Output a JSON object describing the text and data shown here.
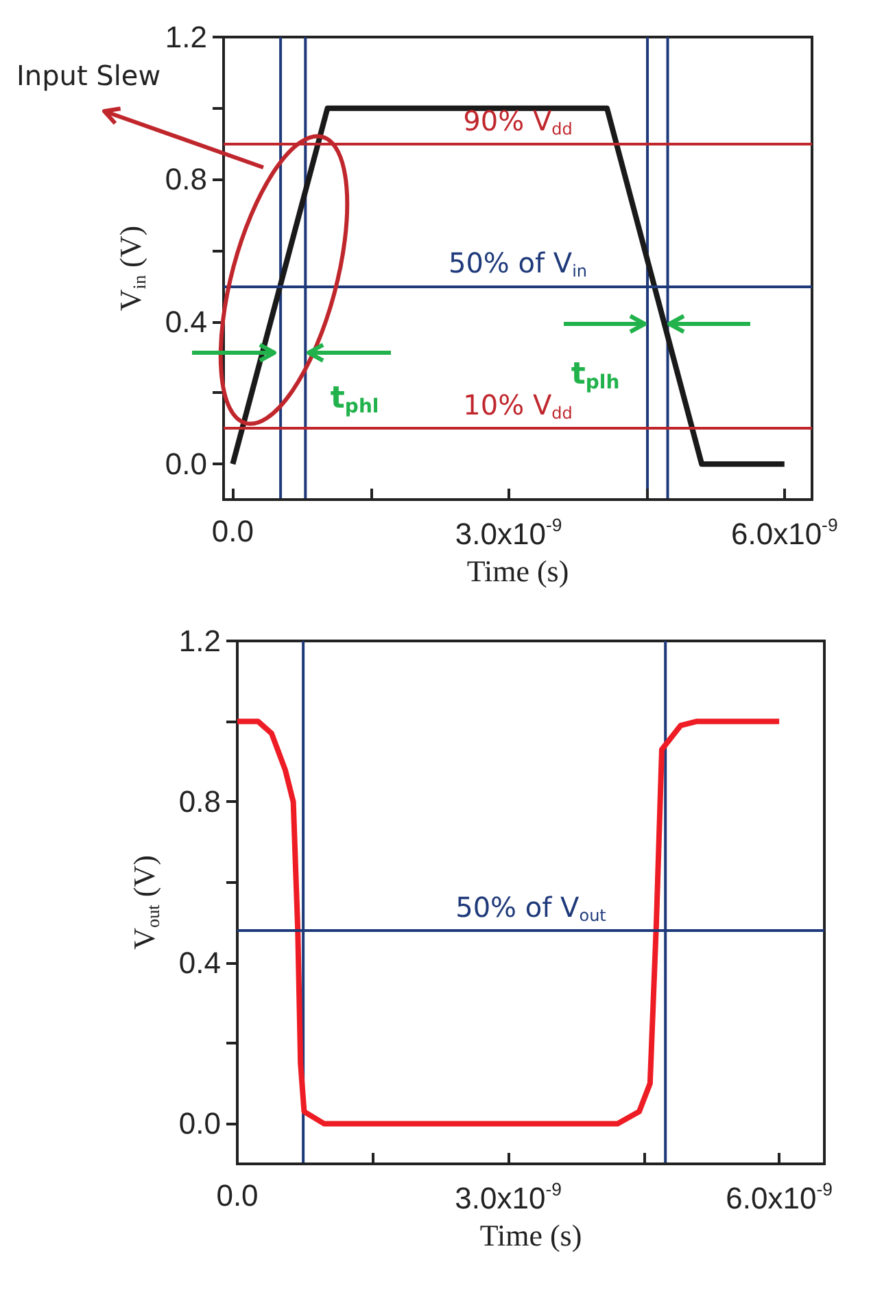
{
  "chart_data": [
    {
      "type": "line",
      "xlabel": "Time (s)",
      "ylabel": "V$_{in}$ (V)",
      "xlim": [
        -1e-10,
        6.3e-09
      ],
      "ylim": [
        -0.1,
        1.2
      ],
      "xticks": [
        {
          "value": 0,
          "label": "0.0"
        },
        {
          "value": 1.5e-09,
          "label": null
        },
        {
          "value": 3e-09,
          "label": "3.0x10$^{-9}$"
        },
        {
          "value": 4.5e-09,
          "label": null
        },
        {
          "value": 6e-09,
          "label": "6.0x10$^{-9}$"
        }
      ],
      "yticks": [
        {
          "value": 0,
          "label": "0.0"
        },
        {
          "value": 0.2,
          "label": null
        },
        {
          "value": 0.4,
          "label": "0.4"
        },
        {
          "value": 0.6,
          "label": null
        },
        {
          "value": 0.8,
          "label": "0.8"
        },
        {
          "value": 1.0,
          "label": null
        },
        {
          "value": 1.2,
          "label": "1.2"
        }
      ],
      "series": [
        {
          "color": "#1a1a1a",
          "x": [
            0,
            1.03e-09,
            4.07e-09,
            5.1e-09,
            6e-09
          ],
          "values": [
            0,
            1.0,
            1.0,
            0,
            0
          ]
        }
      ],
      "ref_lines": [
        {
          "axis": "y",
          "value": 0.9,
          "label": "90% V$_{dd}$",
          "color": "#c0272d"
        },
        {
          "axis": "y",
          "value": 0.1,
          "label": "10% V$_{dd}$",
          "color": "#c0272d"
        },
        {
          "axis": "y",
          "value": 0.5,
          "label": "50% of V$_{in}$",
          "color": "#1f3a7a"
        },
        {
          "axis": "x",
          "value": 5.2e-10,
          "color": "#1f3a7a"
        },
        {
          "axis": "x",
          "value": 7.9e-10,
          "color": "#1f3a7a"
        },
        {
          "axis": "x",
          "value": 4.51e-09,
          "color": "#1f3a7a"
        },
        {
          "axis": "x",
          "value": 4.73e-09,
          "color": "#1f3a7a"
        }
      ],
      "annotations": [
        "Input Slew",
        {
          "text": "t$_{phl}$",
          "x": 5.2e-10,
          "y": 0.31
        },
        {
          "text": "t$_{plh}$",
          "x": 4.51e-09,
          "y": 0.39
        }
      ]
    },
    {
      "type": "line",
      "xlabel": "Time (s)",
      "ylabel": "V$_{out}$ (V)",
      "xlim": [
        0,
        6.5e-09
      ],
      "ylim": [
        -0.1,
        1.2
      ],
      "xticks": [
        {
          "value": 0,
          "label": "0.0"
        },
        {
          "value": 1.5e-09,
          "label": null
        },
        {
          "value": 3e-09,
          "label": "3.0x10$^{-9}$"
        },
        {
          "value": 4.5e-09,
          "label": null
        },
        {
          "value": 6e-09,
          "label": "6.0x10$^{-9}$"
        }
      ],
      "yticks": [
        {
          "value": 0,
          "label": "0.0"
        },
        {
          "value": 0.2,
          "label": null
        },
        {
          "value": 0.4,
          "label": "0.4"
        },
        {
          "value": 0.6,
          "label": null
        },
        {
          "value": 0.8,
          "label": "0.8"
        },
        {
          "value": 1.0,
          "label": null
        },
        {
          "value": 1.2,
          "label": "1.2"
        }
      ],
      "series": [
        {
          "color": "#ee1c24",
          "x": [
            0,
            2.3e-10,
            3.8e-10,
            5.3e-10,
            6.2e-10,
            6.7e-10,
            7e-10,
            7.4e-10,
            9.6e-10,
            4.21e-09,
            4.45e-09,
            4.57e-09,
            4.64e-09,
            4.7e-09,
            4.91e-09,
            5.09e-09,
            6e-09
          ],
          "values": [
            1.0,
            1.0,
            0.97,
            0.88,
            0.8,
            0.48,
            0.15,
            0.03,
            0,
            0,
            0.03,
            0.1,
            0.5,
            0.93,
            0.99,
            1.0,
            1.0
          ]
        }
      ],
      "ref_lines": [
        {
          "axis": "y",
          "value": 0.48,
          "label": "50% of V$_{out}$",
          "color": "#1f3a7a"
        },
        {
          "axis": "x",
          "value": 7.3e-10,
          "color": "#1f3a7a"
        },
        {
          "axis": "x",
          "value": 4.74e-09,
          "color": "#1f3a7a"
        }
      ]
    }
  ]
}
